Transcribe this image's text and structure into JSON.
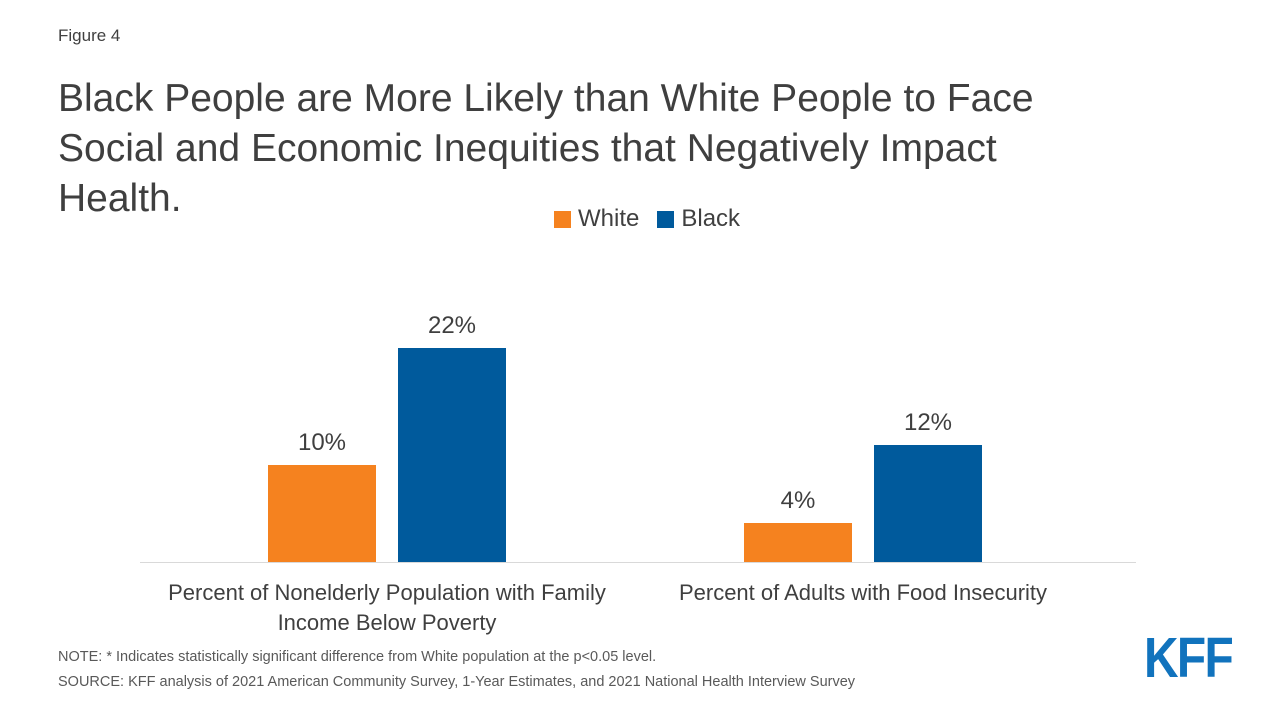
{
  "figure_label": "Figure 4",
  "title": {
    "full": "Black People are More Likely than White People to Face Social and Economic Inequities that Negatively Impact Health.",
    "lines": [
      "Black People are More Likely than White People to Face",
      "Social and Economic Inequities that Negatively Impact",
      "Health."
    ]
  },
  "legend": {
    "position": "top-center",
    "items": [
      {
        "label": "White",
        "color": "#F5821F"
      },
      {
        "label": "Black",
        "color": "#005A9C"
      }
    ]
  },
  "chart_data": {
    "type": "bar",
    "title": "Black People are More Likely than White People to Face Social and Economic Inequities that Negatively Impact Health.",
    "categories": [
      "Percent of Nonelderly Population with Family Income Below Poverty",
      "Percent of Adults with Food Insecurity"
    ],
    "series": [
      {
        "name": "White",
        "color": "#F5821F",
        "values": [
          10,
          4
        ]
      },
      {
        "name": "Black",
        "color": "#005A9C",
        "values": [
          22,
          12
        ]
      }
    ],
    "value_label_suffix": "%",
    "xlabel": "",
    "ylabel": "",
    "ylim": [
      0,
      25
    ],
    "grid": false,
    "axis_line_color": "#D9D9D9",
    "legend_position": "top"
  },
  "notes": {
    "note": "NOTE: * Indicates statistically significant difference from White population at the p<0.05 level.",
    "source": "SOURCE: KFF analysis of 2021 American Community Survey, 1-Year Estimates, and 2021 National Health Interview Survey"
  },
  "logo": {
    "text": "KFF",
    "color": "#1173BD"
  }
}
